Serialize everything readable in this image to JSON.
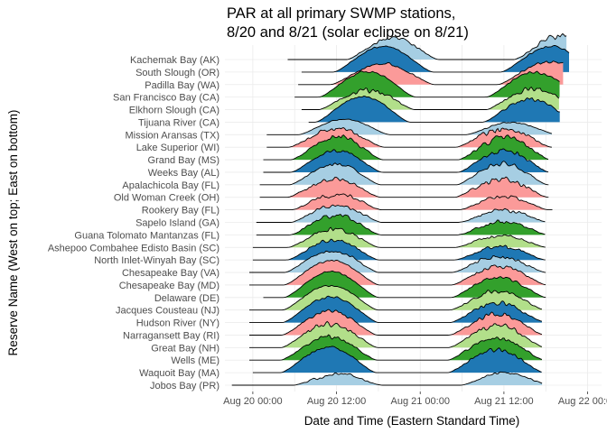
{
  "chart_data": {
    "type": "area",
    "subtype": "ridgeline",
    "title": [
      "PAR at all primary SWMP stations,",
      "8/20 and 8/21 (solar eclipse on 8/21)"
    ],
    "xlabel": "Date and Time (Eastern Standard Time)",
    "ylabel": "Reserve Name (West on top; East on bottom)",
    "x_tick_labels": [
      "Aug 20 00:00",
      "Aug 20 12:00",
      "Aug 21 00:00",
      "Aug 21 12:00",
      "Aug 22 00:00"
    ],
    "x_tick_hours": [
      0,
      12,
      24,
      36,
      48
    ],
    "xlim_hours": [
      -4,
      50
    ],
    "grid": true,
    "legend": "none",
    "palette": [
      "#a6cee3",
      "#1f78b4",
      "#b2df8a",
      "#33a02c",
      "#fb9a99"
    ],
    "series": [
      {
        "name": "Kachemak Bay (AK)",
        "color": "#a6cee3",
        "start": 5,
        "end": 45,
        "day1": {
          "rise": 13.5,
          "set": 26.6,
          "peak": 0.9,
          "noise": 0.25
        },
        "day2": {
          "rise": 37.5,
          "set": 50.4,
          "peak": 1.0,
          "noise": 0.3
        }
      },
      {
        "name": "South Slough (OR)",
        "color": "#1f78b4",
        "start": 7,
        "end": 45.5,
        "day1": {
          "rise": 11.6,
          "set": 25.8,
          "peak": 1.0,
          "noise": 0.1
        },
        "day2": {
          "rise": 35.6,
          "set": 49.8,
          "peak": 1.0,
          "noise": 0.15
        }
      },
      {
        "name": "Padilla Bay (WA)",
        "color": "#fb9a99",
        "start": 6.5,
        "end": 44.5,
        "day1": {
          "rise": 11.2,
          "set": 26.0,
          "peak": 0.85,
          "noise": 0.2
        },
        "day2": {
          "rise": 35.2,
          "set": 50.0,
          "peak": 0.95,
          "noise": 0.2
        }
      },
      {
        "name": "San Francisco Bay (CA)",
        "color": "#33a02c",
        "start": 6,
        "end": 44,
        "day1": {
          "rise": 9.5,
          "set": 23.3,
          "peak": 1.0,
          "noise": 0.12
        },
        "day2": {
          "rise": 33.5,
          "set": 47.3,
          "peak": 1.0,
          "noise": 0.15
        }
      },
      {
        "name": "Elkhorn Slough (CA)",
        "color": "#b2df8a",
        "start": 7,
        "end": 44,
        "day1": {
          "rise": 9.5,
          "set": 23.2,
          "peak": 0.85,
          "noise": 0.3
        },
        "day2": {
          "rise": 33.5,
          "set": 47.2,
          "peak": 0.9,
          "noise": 0.3
        }
      },
      {
        "name": "Tijuana River (CA)",
        "color": "#1f78b4",
        "start": 8,
        "end": 44,
        "day1": {
          "rise": 9.0,
          "set": 22.5,
          "peak": 1.0,
          "noise": 0.1
        },
        "day2": {
          "rise": 33.0,
          "set": 46.5,
          "peak": 0.95,
          "noise": 0.2
        }
      },
      {
        "name": "Mission Aransas (TX)",
        "color": "#a6cee3",
        "start": 2,
        "end": 43,
        "day1": {
          "rise": 6.6,
          "set": 19.6,
          "peak": 0.6,
          "noise": 0.1
        },
        "day2": {
          "rise": 30.6,
          "set": 43.6,
          "peak": 0.5,
          "noise": 0.2
        }
      },
      {
        "name": "Lake Superior (WI)",
        "color": "#fb9a99",
        "start": 2,
        "end": 43,
        "day1": {
          "rise": 5.2,
          "set": 18.8,
          "peak": 0.8,
          "noise": 0.3
        },
        "day2": {
          "rise": 29.2,
          "set": 42.8,
          "peak": 0.85,
          "noise": 0.4
        }
      },
      {
        "name": "Grand Bay (MS)",
        "color": "#33a02c",
        "start": 1.5,
        "end": 42.5,
        "day1": {
          "rise": 5.5,
          "set": 18.6,
          "peak": 1.0,
          "noise": 0.3
        },
        "day2": {
          "rise": 29.5,
          "set": 42.6,
          "peak": 1.0,
          "noise": 0.35
        }
      },
      {
        "name": "Weeks Bay (AL)",
        "color": "#1f78b4",
        "start": 1.5,
        "end": 42.5,
        "day1": {
          "rise": 5.5,
          "set": 18.5,
          "peak": 0.9,
          "noise": 0.2
        },
        "day2": {
          "rise": 29.5,
          "set": 42.5,
          "peak": 0.95,
          "noise": 0.3
        }
      },
      {
        "name": "Apalachicola Bay (FL)",
        "color": "#a6cee3",
        "start": 1,
        "end": 42.5,
        "day1": {
          "rise": 5.3,
          "set": 18.3,
          "peak": 0.85,
          "noise": 0.2
        },
        "day2": {
          "rise": 29.3,
          "set": 42.3,
          "peak": 0.9,
          "noise": 0.25
        }
      },
      {
        "name": "Old Woman Creek (OH)",
        "color": "#fb9a99",
        "start": 1,
        "end": 42.5,
        "day1": {
          "rise": 5.0,
          "set": 18.3,
          "peak": 0.8,
          "noise": 0.35
        },
        "day2": {
          "rise": 29.0,
          "set": 42.3,
          "peak": 0.85,
          "noise": 0.4
        }
      },
      {
        "name": "Rookery Bay (FL)",
        "color": "#fb9a99",
        "start": 1,
        "end": 43,
        "day1": {
          "rise": 5.6,
          "set": 18.4,
          "peak": 0.7,
          "noise": 0.35
        },
        "day2": {
          "rise": 29.6,
          "set": 42.4,
          "peak": 0.6,
          "noise": 0.4
        }
      },
      {
        "name": "Sapelo Island (GA)",
        "color": "#a6cee3",
        "start": 0.5,
        "end": 42,
        "day1": {
          "rise": 5.5,
          "set": 18.4,
          "peak": 0.75,
          "noise": 0.3
        },
        "day2": {
          "rise": 29.5,
          "set": 42.4,
          "peak": 0.55,
          "noise": 0.4
        }
      },
      {
        "name": "Guana Tolomato Mantanzas (FL)",
        "color": "#33a02c",
        "start": 0.5,
        "end": 42,
        "day1": {
          "rise": 5.4,
          "set": 18.3,
          "peak": 0.85,
          "noise": 0.3
        },
        "day2": {
          "rise": 29.4,
          "set": 42.3,
          "peak": 0.6,
          "noise": 0.4
        }
      },
      {
        "name": "Ashepoo Combahee Edisto Basin (SC)",
        "color": "#b2df8a",
        "start": 0,
        "end": 42,
        "day1": {
          "rise": 5.1,
          "set": 18.1,
          "peak": 0.8,
          "noise": 0.3
        },
        "day2": {
          "rise": 29.1,
          "set": 42.1,
          "peak": 0.55,
          "noise": 0.4
        }
      },
      {
        "name": "North Inlet-Winyah Bay (SC)",
        "color": "#1f78b4",
        "start": 0,
        "end": 42,
        "day1": {
          "rise": 5.0,
          "set": 18.0,
          "peak": 0.85,
          "noise": 0.25
        },
        "day2": {
          "rise": 29.0,
          "set": 42.0,
          "peak": 0.6,
          "noise": 0.35
        }
      },
      {
        "name": "Chesapeake Bay (VA)",
        "color": "#a6cee3",
        "start": -0.5,
        "end": 42,
        "day1": {
          "rise": 4.6,
          "set": 18.0,
          "peak": 0.9,
          "noise": 0.2
        },
        "day2": {
          "rise": 28.6,
          "set": 42.0,
          "peak": 0.7,
          "noise": 0.3
        }
      },
      {
        "name": "Chesapeake Bay (MD)",
        "color": "#fb9a99",
        "start": -0.5,
        "end": 42,
        "day1": {
          "rise": 4.5,
          "set": 18.1,
          "peak": 0.95,
          "noise": 0.1
        },
        "day2": {
          "rise": 28.5,
          "set": 42.1,
          "peak": 0.8,
          "noise": 0.3
        }
      },
      {
        "name": "Delaware (DE)",
        "color": "#33a02c",
        "start": 1.5,
        "end": 42,
        "day1": {
          "rise": 4.5,
          "set": 18.0,
          "peak": 1.0,
          "noise": 0.1
        },
        "day2": {
          "rise": 28.5,
          "set": 42.0,
          "peak": 0.85,
          "noise": 0.25
        }
      },
      {
        "name": "Jacques Cousteau (NJ)",
        "color": "#b2df8a",
        "start": -0.5,
        "end": 41.5,
        "day1": {
          "rise": 4.3,
          "set": 17.9,
          "peak": 0.95,
          "noise": 0.1
        },
        "day2": {
          "rise": 28.3,
          "set": 41.9,
          "peak": 0.8,
          "noise": 0.3
        }
      },
      {
        "name": "Hudson River (NY)",
        "color": "#1f78b4",
        "start": -0.5,
        "end": 41.5,
        "day1": {
          "rise": 4.3,
          "set": 18.0,
          "peak": 1.0,
          "noise": 0.1
        },
        "day2": {
          "rise": 28.3,
          "set": 42.0,
          "peak": 0.85,
          "noise": 0.3
        }
      },
      {
        "name": "Narragansett Bay (RI)",
        "color": "#fb9a99",
        "start": -0.5,
        "end": 41.5,
        "day1": {
          "rise": 4.2,
          "set": 17.8,
          "peak": 1.0,
          "noise": 0.2
        },
        "day2": {
          "rise": 28.2,
          "set": 41.8,
          "peak": 0.9,
          "noise": 0.3
        }
      },
      {
        "name": "Great Bay (NH)",
        "color": "#b2df8a",
        "start": -0.5,
        "end": 41.5,
        "day1": {
          "rise": 4.1,
          "set": 17.9,
          "peak": 1.0,
          "noise": 0.25
        },
        "day2": {
          "rise": 28.1,
          "set": 41.9,
          "peak": 0.95,
          "noise": 0.3
        }
      },
      {
        "name": "Wells (ME)",
        "color": "#33a02c",
        "start": -0.5,
        "end": 41.5,
        "day1": {
          "rise": 4.0,
          "set": 17.8,
          "peak": 1.0,
          "noise": 0.25
        },
        "day2": {
          "rise": 28.0,
          "set": 41.8,
          "peak": 0.95,
          "noise": 0.3
        }
      },
      {
        "name": "Waquoit Bay (MA)",
        "color": "#1f78b4",
        "start": 0,
        "end": 41.5,
        "day1": {
          "rise": 4.0,
          "set": 17.7,
          "peak": 1.0,
          "noise": 0.15
        },
        "day2": {
          "rise": 28.0,
          "set": 41.7,
          "peak": 0.95,
          "noise": 0.25
        }
      },
      {
        "name": "Jobos Bay (PR)",
        "color": "#a6cee3",
        "start": -3,
        "end": 41.5,
        "day1": {
          "rise": 5.9,
          "set": 18.5,
          "peak": 0.5,
          "noise": 0.4
        },
        "day2": {
          "rise": 29.9,
          "set": 42.5,
          "peak": 0.55,
          "noise": 0.3
        }
      }
    ]
  }
}
